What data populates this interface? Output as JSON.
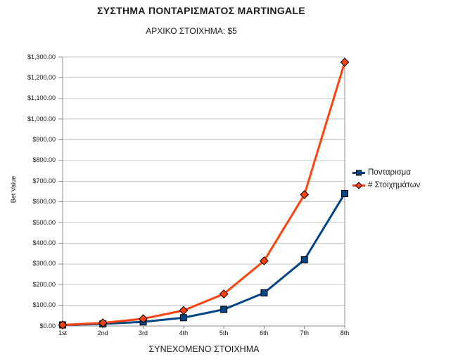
{
  "chart_data": {
    "type": "line",
    "title": "ΣΥΣΤΗΜΑ ΠΟΝΤΑΡΙΣΜΑΤΟΣ MARTINGALE",
    "subtitle": "ΑΡΧΙΚΟ ΣΤΟΙΧΗΜΑ: $5",
    "xlabel": "ΣΥΝΕΧΟΜΕΝΟ ΣΤΟΙΧΗΜΑ",
    "ylabel": "Bet Value",
    "categories": [
      "1st",
      "2nd",
      "3rd",
      "4th",
      "5th",
      "6th",
      "7th",
      "8th"
    ],
    "series": [
      {
        "name": "Πονταρισμα",
        "marker": "square",
        "color": "#004586",
        "values": [
          5,
          10,
          20,
          40,
          80,
          160,
          320,
          640
        ]
      },
      {
        "name": "# Στοιχημάτων",
        "marker": "diamond",
        "color": "#FF420E",
        "values": [
          5,
          15,
          35,
          75,
          155,
          315,
          635,
          1275
        ]
      }
    ],
    "ylim": [
      0,
      1300
    ],
    "y_tick_step": 100,
    "y_tick_labels": [
      "$0.00",
      "$100.00",
      "$200.00",
      "$300.00",
      "$400.00",
      "$500.00",
      "$600.00",
      "$700.00",
      "$800.00",
      "$900.00",
      "$1,000.00",
      "$1,100.00",
      "$1,200.00",
      "$1,300.00"
    ],
    "grid": "horizontal",
    "legend_position": "right",
    "colors": {
      "grid": "#c6c6c6",
      "axis": "#8f8f8f",
      "marker_outline": "#000000",
      "text": "#000000",
      "background": "#ffffff"
    }
  }
}
